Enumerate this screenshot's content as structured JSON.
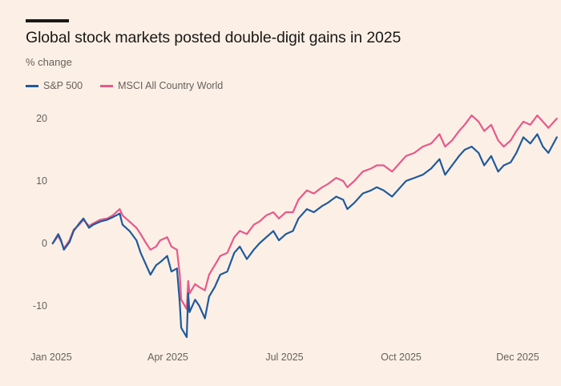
{
  "chart_data": {
    "type": "line",
    "title": "Global stock markets posted double-digit gains in 2025",
    "subtitle": "% change",
    "xlabel": "",
    "ylabel": "",
    "ylim": [
      -15,
      22
    ],
    "grid": false,
    "legend_position": "top-left",
    "x_ticks": [
      "Jan 2025",
      "Apr 2025",
      "Jul 2025",
      "Oct 2025",
      "Dec 2025"
    ],
    "y_ticks": [
      20,
      10,
      0,
      -10
    ],
    "x_start": "2025-01-01",
    "x_end": "2025-12-01",
    "series": [
      {
        "name": "S&P 500",
        "color": "#1f5a9c",
        "points": [
          [
            "2025-01-02",
            0.0
          ],
          [
            "2025-01-06",
            1.5
          ],
          [
            "2025-01-08",
            0.5
          ],
          [
            "2025-01-10",
            -1.0
          ],
          [
            "2025-01-14",
            0.2
          ],
          [
            "2025-01-17",
            2.0
          ],
          [
            "2025-01-21",
            3.2
          ],
          [
            "2025-01-24",
            4.0
          ],
          [
            "2025-01-28",
            2.5
          ],
          [
            "2025-01-31",
            3.0
          ],
          [
            "2025-02-05",
            3.5
          ],
          [
            "2025-02-10",
            3.8
          ],
          [
            "2025-02-14",
            4.2
          ],
          [
            "2025-02-19",
            4.8
          ],
          [
            "2025-02-21",
            3.0
          ],
          [
            "2025-02-26",
            2.0
          ],
          [
            "2025-03-03",
            0.5
          ],
          [
            "2025-03-06",
            -1.5
          ],
          [
            "2025-03-10",
            -3.5
          ],
          [
            "2025-03-13",
            -5.0
          ],
          [
            "2025-03-17",
            -3.5
          ],
          [
            "2025-03-20",
            -3.0
          ],
          [
            "2025-03-25",
            -2.0
          ],
          [
            "2025-03-28",
            -4.5
          ],
          [
            "2025-04-01",
            -4.0
          ],
          [
            "2025-04-03",
            -9.5
          ],
          [
            "2025-04-04",
            -13.5
          ],
          [
            "2025-04-08",
            -15.0
          ],
          [
            "2025-04-09",
            -8.0
          ],
          [
            "2025-04-10",
            -11.0
          ],
          [
            "2025-04-14",
            -9.0
          ],
          [
            "2025-04-17",
            -10.0
          ],
          [
            "2025-04-21",
            -12.0
          ],
          [
            "2025-04-24",
            -8.5
          ],
          [
            "2025-04-28",
            -7.0
          ],
          [
            "2025-05-02",
            -5.0
          ],
          [
            "2025-05-07",
            -4.5
          ],
          [
            "2025-05-12",
            -1.5
          ],
          [
            "2025-05-16",
            -0.5
          ],
          [
            "2025-05-21",
            -2.5
          ],
          [
            "2025-05-26",
            -1.0
          ],
          [
            "2025-05-30",
            0.0
          ],
          [
            "2025-06-04",
            1.0
          ],
          [
            "2025-06-09",
            2.0
          ],
          [
            "2025-06-13",
            0.5
          ],
          [
            "2025-06-18",
            1.5
          ],
          [
            "2025-06-23",
            2.0
          ],
          [
            "2025-06-27",
            4.0
          ],
          [
            "2025-07-03",
            5.5
          ],
          [
            "2025-07-08",
            5.0
          ],
          [
            "2025-07-14",
            6.0
          ],
          [
            "2025-07-18",
            6.5
          ],
          [
            "2025-07-24",
            7.5
          ],
          [
            "2025-07-29",
            7.0
          ],
          [
            "2025-08-01",
            5.5
          ],
          [
            "2025-08-06",
            6.5
          ],
          [
            "2025-08-12",
            8.0
          ],
          [
            "2025-08-18",
            8.5
          ],
          [
            "2025-08-22",
            9.0
          ],
          [
            "2025-08-27",
            8.5
          ],
          [
            "2025-09-02",
            7.5
          ],
          [
            "2025-09-08",
            9.0
          ],
          [
            "2025-09-12",
            10.0
          ],
          [
            "2025-09-18",
            10.5
          ],
          [
            "2025-09-24",
            11.0
          ],
          [
            "2025-09-30",
            12.0
          ],
          [
            "2025-10-06",
            13.5
          ],
          [
            "2025-10-10",
            11.0
          ],
          [
            "2025-10-15",
            12.5
          ],
          [
            "2025-10-20",
            14.0
          ],
          [
            "2025-10-24",
            15.0
          ],
          [
            "2025-10-29",
            15.5
          ],
          [
            "2025-11-03",
            14.5
          ],
          [
            "2025-11-07",
            12.5
          ],
          [
            "2025-11-12",
            14.0
          ],
          [
            "2025-11-17",
            11.5
          ],
          [
            "2025-11-21",
            12.5
          ],
          [
            "2025-11-26",
            13.0
          ],
          [
            "2025-11-30",
            14.5
          ],
          [
            "2025-12-05",
            17.0
          ],
          [
            "2025-12-10",
            16.0
          ],
          [
            "2025-12-15",
            17.5
          ],
          [
            "2025-12-19",
            15.5
          ],
          [
            "2025-12-23",
            14.5
          ],
          [
            "2025-12-29",
            17.0
          ]
        ]
      },
      {
        "name": "MSCI All Country World",
        "color": "#e8588a",
        "points": [
          [
            "2025-01-02",
            0.0
          ],
          [
            "2025-01-06",
            1.2
          ],
          [
            "2025-01-08",
            0.3
          ],
          [
            "2025-01-10",
            -0.8
          ],
          [
            "2025-01-14",
            0.5
          ],
          [
            "2025-01-17",
            2.2
          ],
          [
            "2025-01-21",
            3.0
          ],
          [
            "2025-01-24",
            3.8
          ],
          [
            "2025-01-28",
            2.8
          ],
          [
            "2025-01-31",
            3.2
          ],
          [
            "2025-02-05",
            3.8
          ],
          [
            "2025-02-10",
            4.0
          ],
          [
            "2025-02-14",
            4.5
          ],
          [
            "2025-02-19",
            5.5
          ],
          [
            "2025-02-21",
            4.5
          ],
          [
            "2025-02-26",
            3.5
          ],
          [
            "2025-03-03",
            2.5
          ],
          [
            "2025-03-06",
            1.5
          ],
          [
            "2025-03-10",
            0.0
          ],
          [
            "2025-03-13",
            -1.0
          ],
          [
            "2025-03-17",
            -0.5
          ],
          [
            "2025-03-20",
            0.5
          ],
          [
            "2025-03-25",
            1.0
          ],
          [
            "2025-03-28",
            -0.5
          ],
          [
            "2025-04-01",
            -1.0
          ],
          [
            "2025-04-03",
            -5.0
          ],
          [
            "2025-04-04",
            -9.0
          ],
          [
            "2025-04-08",
            -10.5
          ],
          [
            "2025-04-09",
            -6.0
          ],
          [
            "2025-04-10",
            -8.0
          ],
          [
            "2025-04-14",
            -6.5
          ],
          [
            "2025-04-17",
            -7.0
          ],
          [
            "2025-04-21",
            -7.5
          ],
          [
            "2025-04-24",
            -5.0
          ],
          [
            "2025-04-28",
            -3.5
          ],
          [
            "2025-05-02",
            -2.0
          ],
          [
            "2025-05-07",
            -1.5
          ],
          [
            "2025-05-12",
            1.0
          ],
          [
            "2025-05-16",
            2.0
          ],
          [
            "2025-05-21",
            1.5
          ],
          [
            "2025-05-26",
            3.0
          ],
          [
            "2025-05-30",
            3.5
          ],
          [
            "2025-06-04",
            4.5
          ],
          [
            "2025-06-09",
            5.0
          ],
          [
            "2025-06-13",
            4.0
          ],
          [
            "2025-06-18",
            5.0
          ],
          [
            "2025-06-23",
            5.0
          ],
          [
            "2025-06-27",
            7.0
          ],
          [
            "2025-07-03",
            8.5
          ],
          [
            "2025-07-08",
            8.0
          ],
          [
            "2025-07-14",
            9.0
          ],
          [
            "2025-07-18",
            9.5
          ],
          [
            "2025-07-24",
            10.5
          ],
          [
            "2025-07-29",
            10.0
          ],
          [
            "2025-08-01",
            9.0
          ],
          [
            "2025-08-06",
            10.0
          ],
          [
            "2025-08-12",
            11.5
          ],
          [
            "2025-08-18",
            12.0
          ],
          [
            "2025-08-22",
            12.5
          ],
          [
            "2025-08-27",
            12.5
          ],
          [
            "2025-09-02",
            11.5
          ],
          [
            "2025-09-08",
            13.0
          ],
          [
            "2025-09-12",
            14.0
          ],
          [
            "2025-09-18",
            14.5
          ],
          [
            "2025-09-24",
            15.5
          ],
          [
            "2025-09-30",
            16.0
          ],
          [
            "2025-10-06",
            17.5
          ],
          [
            "2025-10-10",
            15.5
          ],
          [
            "2025-10-15",
            16.5
          ],
          [
            "2025-10-20",
            18.0
          ],
          [
            "2025-10-24",
            19.0
          ],
          [
            "2025-10-29",
            20.5
          ],
          [
            "2025-11-03",
            19.5
          ],
          [
            "2025-11-07",
            18.0
          ],
          [
            "2025-11-12",
            19.0
          ],
          [
            "2025-11-17",
            16.5
          ],
          [
            "2025-11-21",
            15.5
          ],
          [
            "2025-11-26",
            16.5
          ],
          [
            "2025-11-30",
            18.0
          ],
          [
            "2025-12-05",
            19.5
          ],
          [
            "2025-12-10",
            19.0
          ],
          [
            "2025-12-15",
            20.5
          ],
          [
            "2025-12-19",
            19.5
          ],
          [
            "2025-12-23",
            18.5
          ],
          [
            "2025-12-29",
            20.0
          ]
        ]
      }
    ]
  }
}
